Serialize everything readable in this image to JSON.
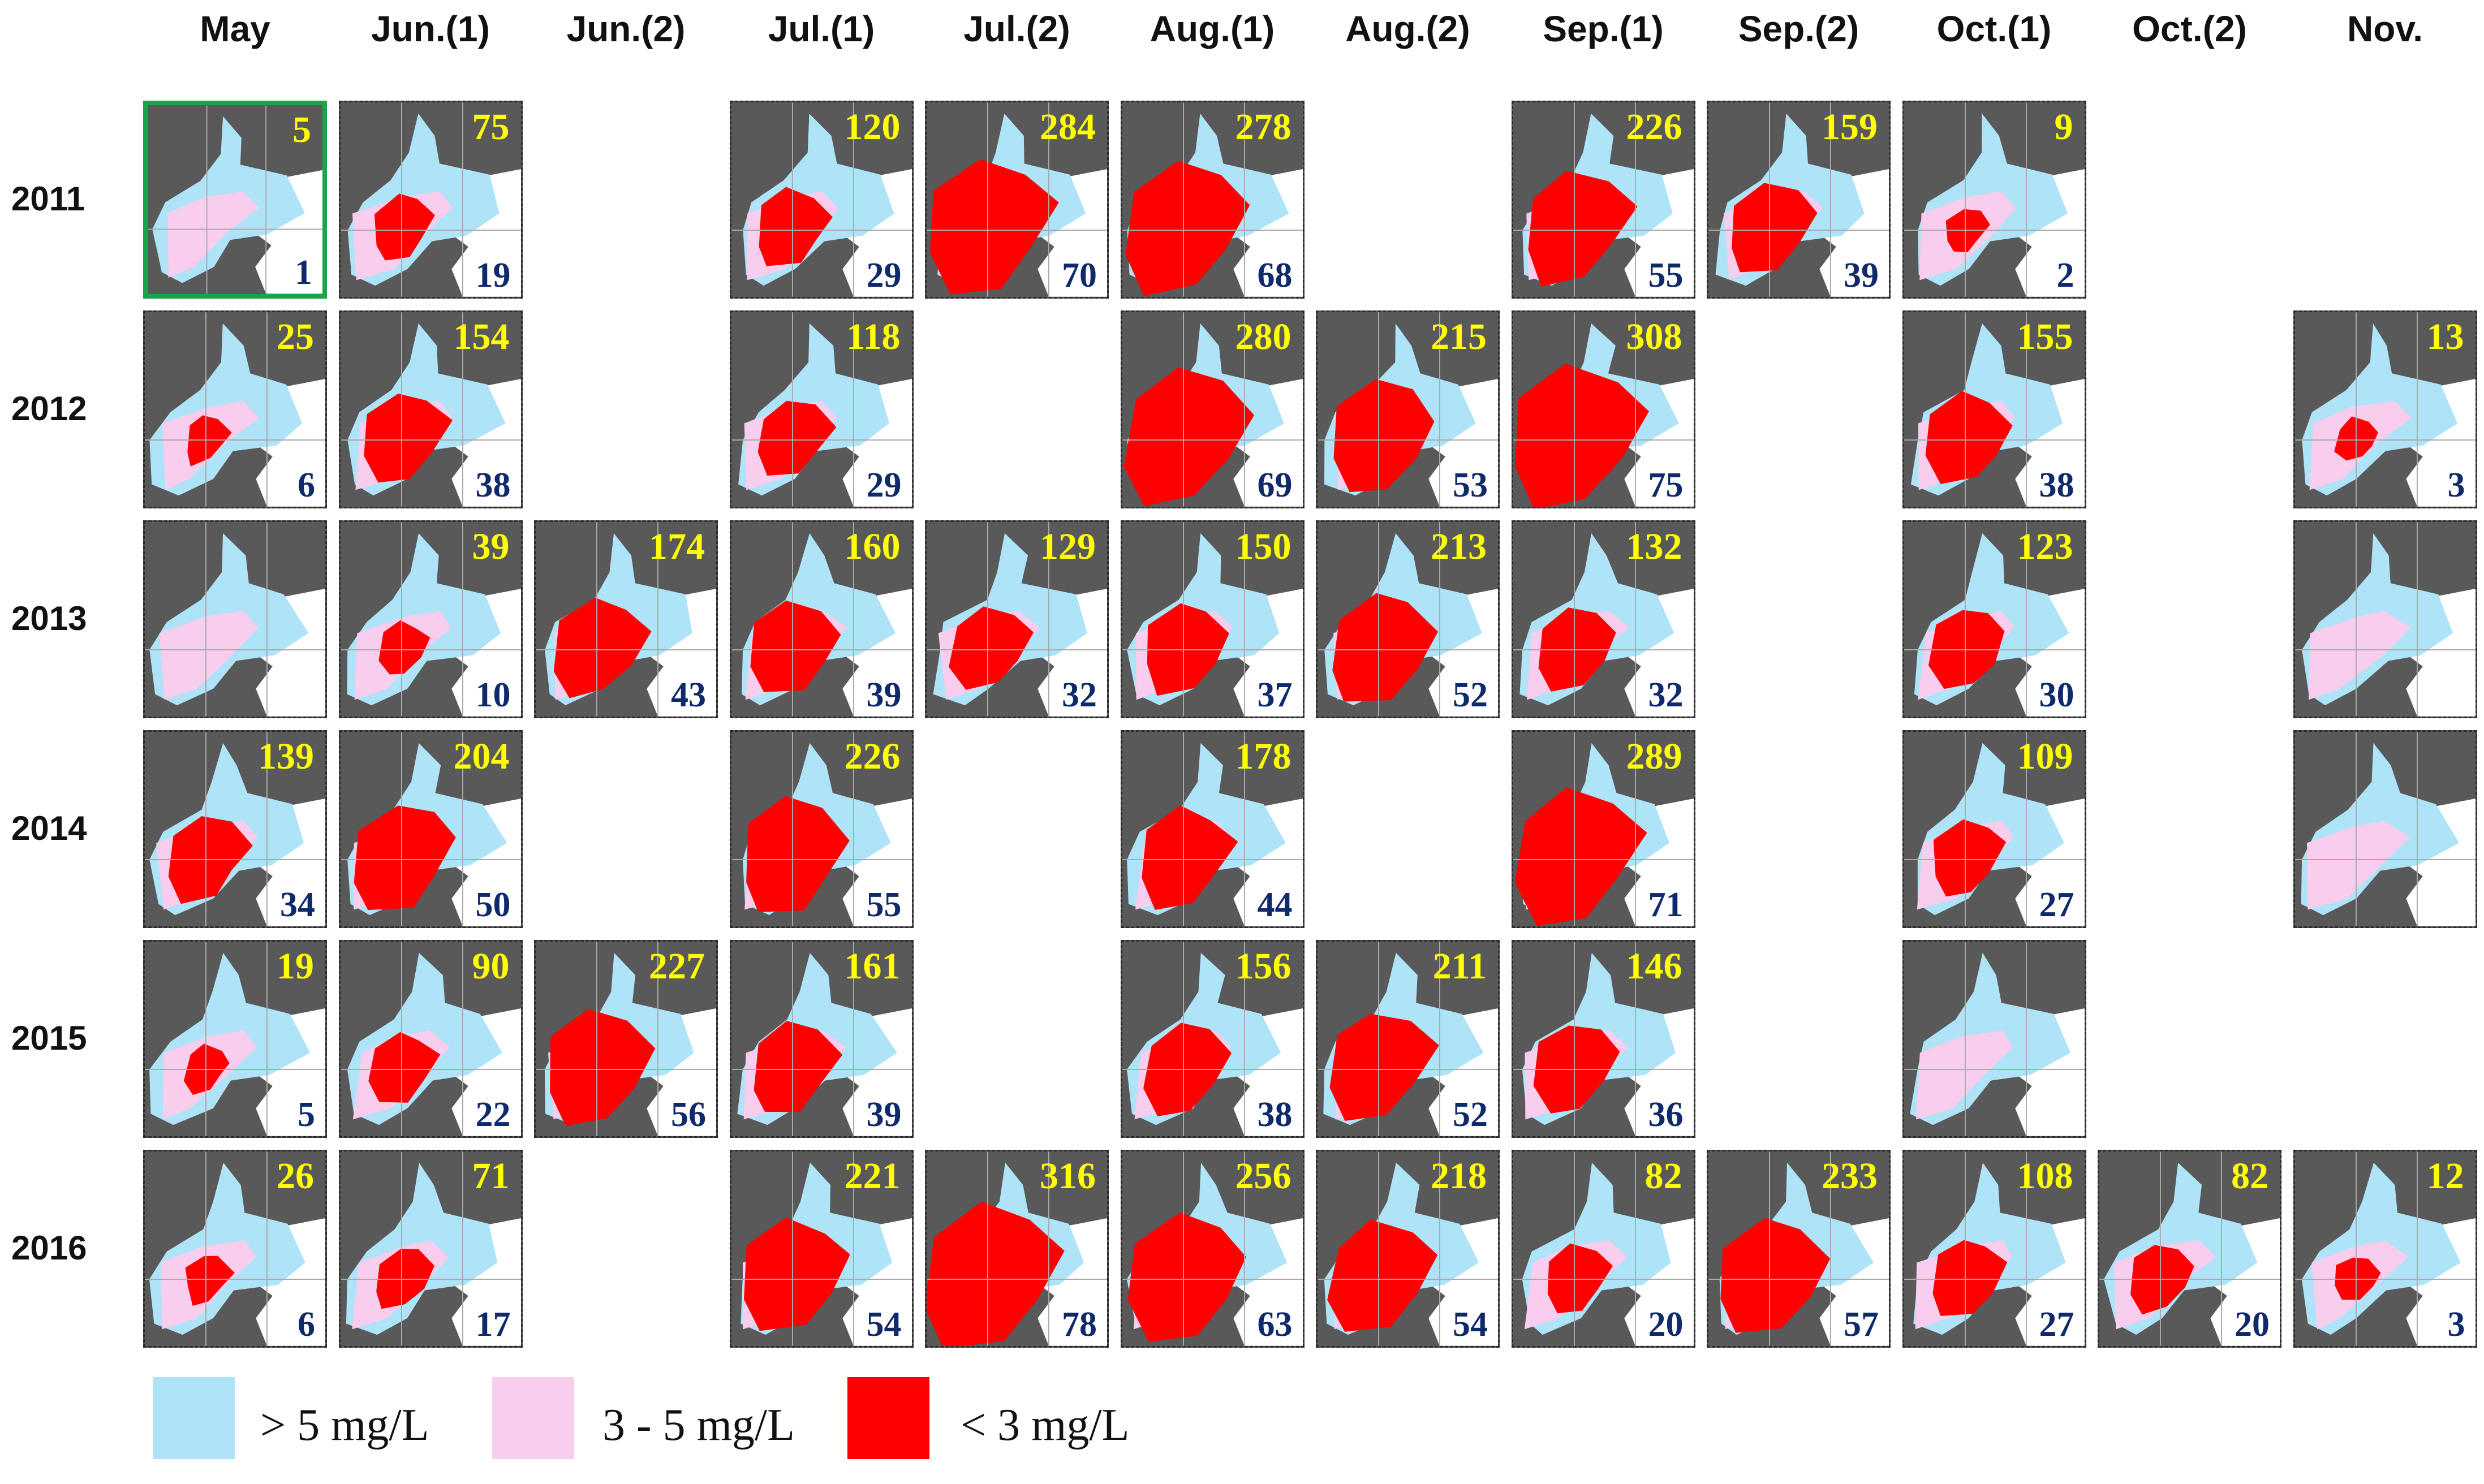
{
  "colors": {
    "high": "#aee3f8",
    "mid": "#f9cdee",
    "low": "#ff0000",
    "land": "#595959",
    "water_bg": "#ffffff"
  },
  "columns": [
    "May",
    "Jun.(1)",
    "Jun.(2)",
    "Jul.(1)",
    "Jul.(2)",
    "Aug.(1)",
    "Aug.(2)",
    "Sep.(1)",
    "Sep.(2)",
    "Oct.(1)",
    "Oct.(2)",
    "Nov."
  ],
  "rows": [
    {
      "year": "2011",
      "cells": [
        {
          "col": 0,
          "top": "5",
          "bottom": "1",
          "highlight": true
        },
        {
          "col": 1,
          "top": "75",
          "bottom": "19"
        },
        {
          "col": 3,
          "top": "120",
          "bottom": "29"
        },
        {
          "col": 4,
          "top": "284",
          "bottom": "70"
        },
        {
          "col": 5,
          "top": "278",
          "bottom": "68"
        },
        {
          "col": 7,
          "top": "226",
          "bottom": "55"
        },
        {
          "col": 8,
          "top": "159",
          "bottom": "39"
        },
        {
          "col": 9,
          "top": "9",
          "bottom": "2"
        }
      ]
    },
    {
      "year": "2012",
      "cells": [
        {
          "col": 0,
          "top": "25",
          "bottom": "6"
        },
        {
          "col": 1,
          "top": "154",
          "bottom": "38"
        },
        {
          "col": 3,
          "top": "118",
          "bottom": "29"
        },
        {
          "col": 5,
          "top": "280",
          "bottom": "69"
        },
        {
          "col": 6,
          "top": "215",
          "bottom": "53"
        },
        {
          "col": 7,
          "top": "308",
          "bottom": "75"
        },
        {
          "col": 9,
          "top": "155",
          "bottom": "38"
        },
        {
          "col": 11,
          "top": "13",
          "bottom": "3"
        }
      ]
    },
    {
      "year": "2013",
      "cells": [
        {
          "col": 0,
          "top": "",
          "bottom": ""
        },
        {
          "col": 1,
          "top": "39",
          "bottom": "10"
        },
        {
          "col": 2,
          "top": "174",
          "bottom": "43"
        },
        {
          "col": 3,
          "top": "160",
          "bottom": "39"
        },
        {
          "col": 4,
          "top": "129",
          "bottom": "32"
        },
        {
          "col": 5,
          "top": "150",
          "bottom": "37"
        },
        {
          "col": 6,
          "top": "213",
          "bottom": "52"
        },
        {
          "col": 7,
          "top": "132",
          "bottom": "32"
        },
        {
          "col": 9,
          "top": "123",
          "bottom": "30"
        },
        {
          "col": 11,
          "top": "",
          "bottom": ""
        }
      ]
    },
    {
      "year": "2014",
      "cells": [
        {
          "col": 0,
          "top": "139",
          "bottom": "34"
        },
        {
          "col": 1,
          "top": "204",
          "bottom": "50"
        },
        {
          "col": 3,
          "top": "226",
          "bottom": "55"
        },
        {
          "col": 5,
          "top": "178",
          "bottom": "44"
        },
        {
          "col": 7,
          "top": "289",
          "bottom": "71"
        },
        {
          "col": 9,
          "top": "109",
          "bottom": "27"
        },
        {
          "col": 11,
          "top": "",
          "bottom": ""
        }
      ]
    },
    {
      "year": "2015",
      "cells": [
        {
          "col": 0,
          "top": "19",
          "bottom": "5"
        },
        {
          "col": 1,
          "top": "90",
          "bottom": "22"
        },
        {
          "col": 2,
          "top": "227",
          "bottom": "56"
        },
        {
          "col": 3,
          "top": "161",
          "bottom": "39"
        },
        {
          "col": 5,
          "top": "156",
          "bottom": "38"
        },
        {
          "col": 6,
          "top": "211",
          "bottom": "52"
        },
        {
          "col": 7,
          "top": "146",
          "bottom": "36"
        },
        {
          "col": 9,
          "top": "",
          "bottom": ""
        }
      ]
    },
    {
      "year": "2016",
      "cells": [
        {
          "col": 0,
          "top": "26",
          "bottom": "6"
        },
        {
          "col": 1,
          "top": "71",
          "bottom": "17"
        },
        {
          "col": 3,
          "top": "221",
          "bottom": "54"
        },
        {
          "col": 4,
          "top": "316",
          "bottom": "78"
        },
        {
          "col": 5,
          "top": "256",
          "bottom": "63"
        },
        {
          "col": 6,
          "top": "218",
          "bottom": "54"
        },
        {
          "col": 7,
          "top": "82",
          "bottom": "20"
        },
        {
          "col": 8,
          "top": "233",
          "bottom": "57"
        },
        {
          "col": 9,
          "top": "108",
          "bottom": "27"
        },
        {
          "col": 10,
          "top": "82",
          "bottom": "20"
        },
        {
          "col": 11,
          "top": "12",
          "bottom": "3"
        }
      ]
    }
  ],
  "legend": [
    {
      "key": "high",
      "label": "> 5 mg/L"
    },
    {
      "key": "mid",
      "label": "3 - 5 mg/L"
    },
    {
      "key": "low",
      "label": "< 3 mg/L"
    }
  ]
}
